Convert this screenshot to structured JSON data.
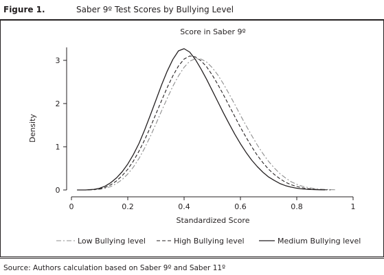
{
  "figure": {
    "number": "Figure 1.",
    "title": "Saber 9º Test Scores by Bullying Level",
    "source": "Source: Authors calculation based on Saber 9º and Saber 11º"
  },
  "chart_data": {
    "type": "line",
    "title": "Score in Saber 9º",
    "xlabel": "Standardized Score",
    "ylabel": "Density",
    "xlim": [
      0,
      1
    ],
    "ylim": [
      0,
      3.3
    ],
    "xticks": [
      0,
      0.2,
      0.4,
      0.6,
      0.8,
      1
    ],
    "xtick_labels": [
      "0",
      "0.2",
      "0.4",
      "0.6",
      "0.8",
      "1"
    ],
    "yticks": [
      0,
      1,
      2,
      3
    ],
    "ytick_labels": [
      "0",
      "1",
      "2",
      "3"
    ],
    "grid": false,
    "legend_position": "bottom",
    "series": [
      {
        "name": "Low Bullying level",
        "style": "dash-dot",
        "color": "#8c8c8c",
        "x": [
          0.02,
          0.05,
          0.08,
          0.1,
          0.12,
          0.14,
          0.16,
          0.18,
          0.2,
          0.22,
          0.24,
          0.26,
          0.28,
          0.3,
          0.32,
          0.34,
          0.36,
          0.38,
          0.4,
          0.42,
          0.44,
          0.46,
          0.48,
          0.5,
          0.52,
          0.54,
          0.56,
          0.58,
          0.6,
          0.62,
          0.64,
          0.66,
          0.68,
          0.7,
          0.72,
          0.74,
          0.76,
          0.78,
          0.8,
          0.82,
          0.84,
          0.86,
          0.88,
          0.9,
          0.92,
          0.94
        ],
        "y": [
          0.0,
          0.0,
          0.005,
          0.015,
          0.04,
          0.08,
          0.15,
          0.24,
          0.37,
          0.53,
          0.73,
          0.97,
          1.24,
          1.53,
          1.83,
          2.12,
          2.4,
          2.64,
          2.84,
          2.98,
          3.04,
          3.03,
          2.96,
          2.83,
          2.66,
          2.45,
          2.22,
          1.98,
          1.73,
          1.49,
          1.26,
          1.04,
          0.84,
          0.66,
          0.51,
          0.38,
          0.28,
          0.19,
          0.13,
          0.085,
          0.055,
          0.035,
          0.02,
          0.012,
          0.006,
          0.003
        ]
      },
      {
        "name": "High Bullying level",
        "style": "dash",
        "color": "#231f20",
        "x": [
          0.02,
          0.05,
          0.08,
          0.1,
          0.12,
          0.14,
          0.16,
          0.18,
          0.2,
          0.22,
          0.24,
          0.26,
          0.28,
          0.3,
          0.32,
          0.34,
          0.36,
          0.38,
          0.4,
          0.42,
          0.44,
          0.46,
          0.48,
          0.5,
          0.52,
          0.54,
          0.56,
          0.58,
          0.6,
          0.62,
          0.64,
          0.66,
          0.68,
          0.7,
          0.72,
          0.74,
          0.76,
          0.78,
          0.8,
          0.82,
          0.84,
          0.86,
          0.88,
          0.9,
          0.92
        ],
        "y": [
          0.0,
          0.0,
          0.01,
          0.025,
          0.06,
          0.12,
          0.21,
          0.33,
          0.48,
          0.67,
          0.9,
          1.16,
          1.45,
          1.76,
          2.07,
          2.37,
          2.64,
          2.87,
          3.03,
          3.1,
          3.08,
          2.99,
          2.85,
          2.66,
          2.44,
          2.2,
          1.95,
          1.7,
          1.45,
          1.22,
          1.0,
          0.8,
          0.63,
          0.48,
          0.36,
          0.26,
          0.18,
          0.12,
          0.08,
          0.05,
          0.03,
          0.018,
          0.01,
          0.005,
          0.002
        ]
      },
      {
        "name": "Medium Bullying level",
        "style": "solid",
        "color": "#231f20",
        "x": [
          0.02,
          0.05,
          0.08,
          0.1,
          0.12,
          0.14,
          0.16,
          0.18,
          0.2,
          0.22,
          0.24,
          0.26,
          0.28,
          0.3,
          0.32,
          0.34,
          0.36,
          0.38,
          0.4,
          0.42,
          0.44,
          0.46,
          0.48,
          0.5,
          0.52,
          0.54,
          0.56,
          0.58,
          0.6,
          0.62,
          0.64,
          0.66,
          0.68,
          0.7,
          0.72,
          0.74,
          0.76,
          0.78,
          0.8,
          0.82,
          0.84,
          0.86,
          0.88,
          0.9
        ],
        "y": [
          0.0,
          0.0,
          0.015,
          0.04,
          0.09,
          0.17,
          0.28,
          0.42,
          0.6,
          0.82,
          1.08,
          1.39,
          1.73,
          2.08,
          2.43,
          2.75,
          3.02,
          3.22,
          3.27,
          3.19,
          3.02,
          2.8,
          2.56,
          2.3,
          2.04,
          1.78,
          1.53,
          1.29,
          1.07,
          0.87,
          0.69,
          0.54,
          0.41,
          0.3,
          0.22,
          0.15,
          0.1,
          0.065,
          0.04,
          0.024,
          0.014,
          0.008,
          0.004,
          0.002
        ]
      }
    ]
  }
}
